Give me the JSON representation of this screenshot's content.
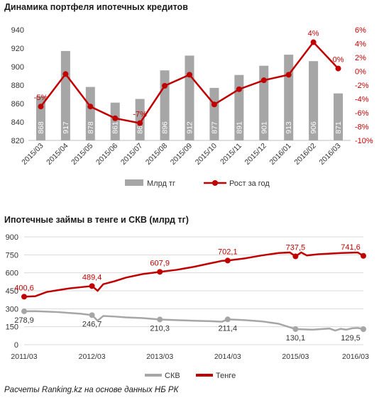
{
  "source_note": "Расчеты Ranking.kz на основе данных НБ РК",
  "colors": {
    "bar": "#a6a6a6",
    "line": "#c00000",
    "skv": "#a6a6a6",
    "grid": "#d9d9d9"
  },
  "chart_data": [
    {
      "type": "bar",
      "title": "Динамика портфеля ипотечных кредитов",
      "categories": [
        "2015/03",
        "2015/04",
        "2015/05",
        "2015/06",
        "2015/07",
        "2015/08",
        "2015/09",
        "2015/10",
        "2015/11",
        "2015/12",
        "2016/01",
        "2016/02",
        "2016/03"
      ],
      "series": [
        {
          "name": "Млрд тг",
          "axis": "left",
          "values": [
            868,
            917,
            878,
            861,
            865,
            896,
            912,
            877,
            891,
            901,
            913,
            906,
            871
          ],
          "labels": [
            "868",
            "917",
            "878",
            "861",
            "865",
            "896",
            "912",
            "877",
            "891",
            "901",
            "913",
            "906",
            "871"
          ]
        },
        {
          "name": "Рост за год",
          "type": "line",
          "axis": "right",
          "values": [
            -5.1,
            -0.4,
            -5.1,
            -6.8,
            -7.5,
            -2.1,
            -0.5,
            -4.8,
            -2.6,
            -1.3,
            -0.5,
            4.2,
            0.4
          ],
          "labels": [
            "-5%",
            "",
            "",
            "",
            "-7%",
            "",
            "",
            "",
            "",
            "",
            "",
            "4%",
            "0%"
          ]
        }
      ],
      "ylim": [
        820,
        940
      ],
      "yticks": [
        "820",
        "840",
        "860",
        "880",
        "900",
        "920",
        "940"
      ],
      "y2lim": [
        -10,
        6
      ],
      "y2ticks": [
        "6%",
        "4%",
        "2%",
        "0%",
        "-2%",
        "-4%",
        "-6%",
        "-8%",
        "-10%"
      ],
      "legend": "bottom",
      "grid": false
    },
    {
      "type": "line",
      "title": "Ипотечные займы в тенге и СКВ (млрд тг)",
      "xticks": [
        "2011/03",
        "2012/03",
        "2013/03",
        "2014/03",
        "2015/03",
        "2016/03"
      ],
      "x_start": "2011/03",
      "x_end": "2016/03",
      "series": [
        {
          "name": "СКВ",
          "x": [
            "2011/03",
            "2011/05",
            "2011/07",
            "2011/09",
            "2011/11",
            "2012/01",
            "2012/03",
            "2012/04",
            "2012/05",
            "2012/07",
            "2012/09",
            "2012/12",
            "2013/03",
            "2013/06",
            "2013/09",
            "2013/12",
            "2014/02",
            "2014/03",
            "2014/06",
            "2014/09",
            "2014/12",
            "2015/03",
            "2015/06",
            "2015/09",
            "2015/10",
            "2015/11",
            "2015/12",
            "2016/01",
            "2016/02",
            "2016/03"
          ],
          "values": [
            278.9,
            280,
            276,
            272,
            265,
            258,
            246.7,
            200,
            240,
            235,
            228,
            222,
            210.3,
            205,
            200,
            196,
            192,
            211.4,
            205,
            195,
            175,
            130.1,
            125,
            135,
            118,
            132,
            125,
            137,
            140,
            129.5
          ],
          "point_labels": [
            {
              "at": "2011/03",
              "text": "278,9"
            },
            {
              "at": "2012/03",
              "text": "246,7"
            },
            {
              "at": "2013/03",
              "text": "210,3"
            },
            {
              "at": "2014/03",
              "text": "211,4"
            },
            {
              "at": "2015/03",
              "text": "130,1"
            },
            {
              "at": "2016/03",
              "text": "129,5"
            }
          ]
        },
        {
          "name": "Тенге",
          "x": [
            "2011/03",
            "2011/05",
            "2011/07",
            "2011/09",
            "2011/11",
            "2012/01",
            "2012/03",
            "2012/04",
            "2012/05",
            "2012/07",
            "2012/09",
            "2012/12",
            "2013/03",
            "2013/06",
            "2013/09",
            "2013/12",
            "2014/01",
            "2014/02",
            "2014/03",
            "2014/06",
            "2014/09",
            "2014/12",
            "2015/02",
            "2015/03",
            "2015/04",
            "2015/05",
            "2015/07",
            "2015/09",
            "2015/11",
            "2016/01",
            "2016/02",
            "2016/03"
          ],
          "values": [
            400.6,
            405,
            440,
            455,
            470,
            480,
            489.4,
            450,
            505,
            530,
            560,
            590,
            607.9,
            625,
            650,
            680,
            690,
            700,
            702.1,
            720,
            745,
            765,
            770,
            737.5,
            770,
            745,
            755,
            760,
            765,
            768,
            770,
            741.6
          ],
          "point_labels": [
            {
              "at": "2011/03",
              "text": "400,6"
            },
            {
              "at": "2012/03",
              "text": "489,4"
            },
            {
              "at": "2013/03",
              "text": "607,9"
            },
            {
              "at": "2014/03",
              "text": "702,1"
            },
            {
              "at": "2015/03",
              "text": "737,5"
            },
            {
              "at": "2016/03",
              "text": "741,6"
            }
          ]
        }
      ],
      "ylim": [
        0,
        900
      ],
      "yticks": [
        "0",
        "150",
        "300",
        "450",
        "600",
        "750",
        "900"
      ],
      "legend": "bottom",
      "grid": true
    }
  ]
}
